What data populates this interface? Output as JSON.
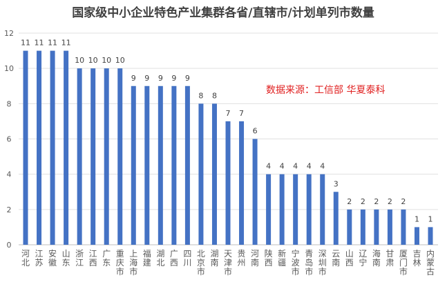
{
  "chart_data": {
    "type": "bar",
    "title": "国家级中小企业特色产业集群各省/直辖市/计划单列市数量",
    "annotation": "数据来源：工信部 华夏泰科",
    "categories": [
      "河北",
      "江苏",
      "安徽",
      "山东",
      "浙江",
      "江西",
      "广东",
      "重庆市",
      "上海市",
      "福建",
      "湖北",
      "广西",
      "四川",
      "北京市",
      "湖南",
      "天津市",
      "贵州",
      "河南",
      "陕西",
      "新疆",
      "宁波市",
      "青岛市",
      "深圳市",
      "云南",
      "山西",
      "辽宁",
      "海南",
      "甘肃",
      "厦门市",
      "吉林",
      "内蒙古"
    ],
    "values": [
      11,
      11,
      11,
      11,
      10,
      10,
      10,
      10,
      9,
      9,
      9,
      9,
      9,
      8,
      8,
      7,
      7,
      6,
      4,
      4,
      4,
      4,
      4,
      3,
      2,
      2,
      2,
      2,
      2,
      1,
      1
    ],
    "ylim": [
      0,
      12
    ],
    "yticks": [
      0,
      2,
      4,
      6,
      8,
      10,
      12
    ],
    "grid": true,
    "bar_color": "#4472C4",
    "annotation_color": "#E02020",
    "xlabel": "",
    "ylabel": ""
  }
}
